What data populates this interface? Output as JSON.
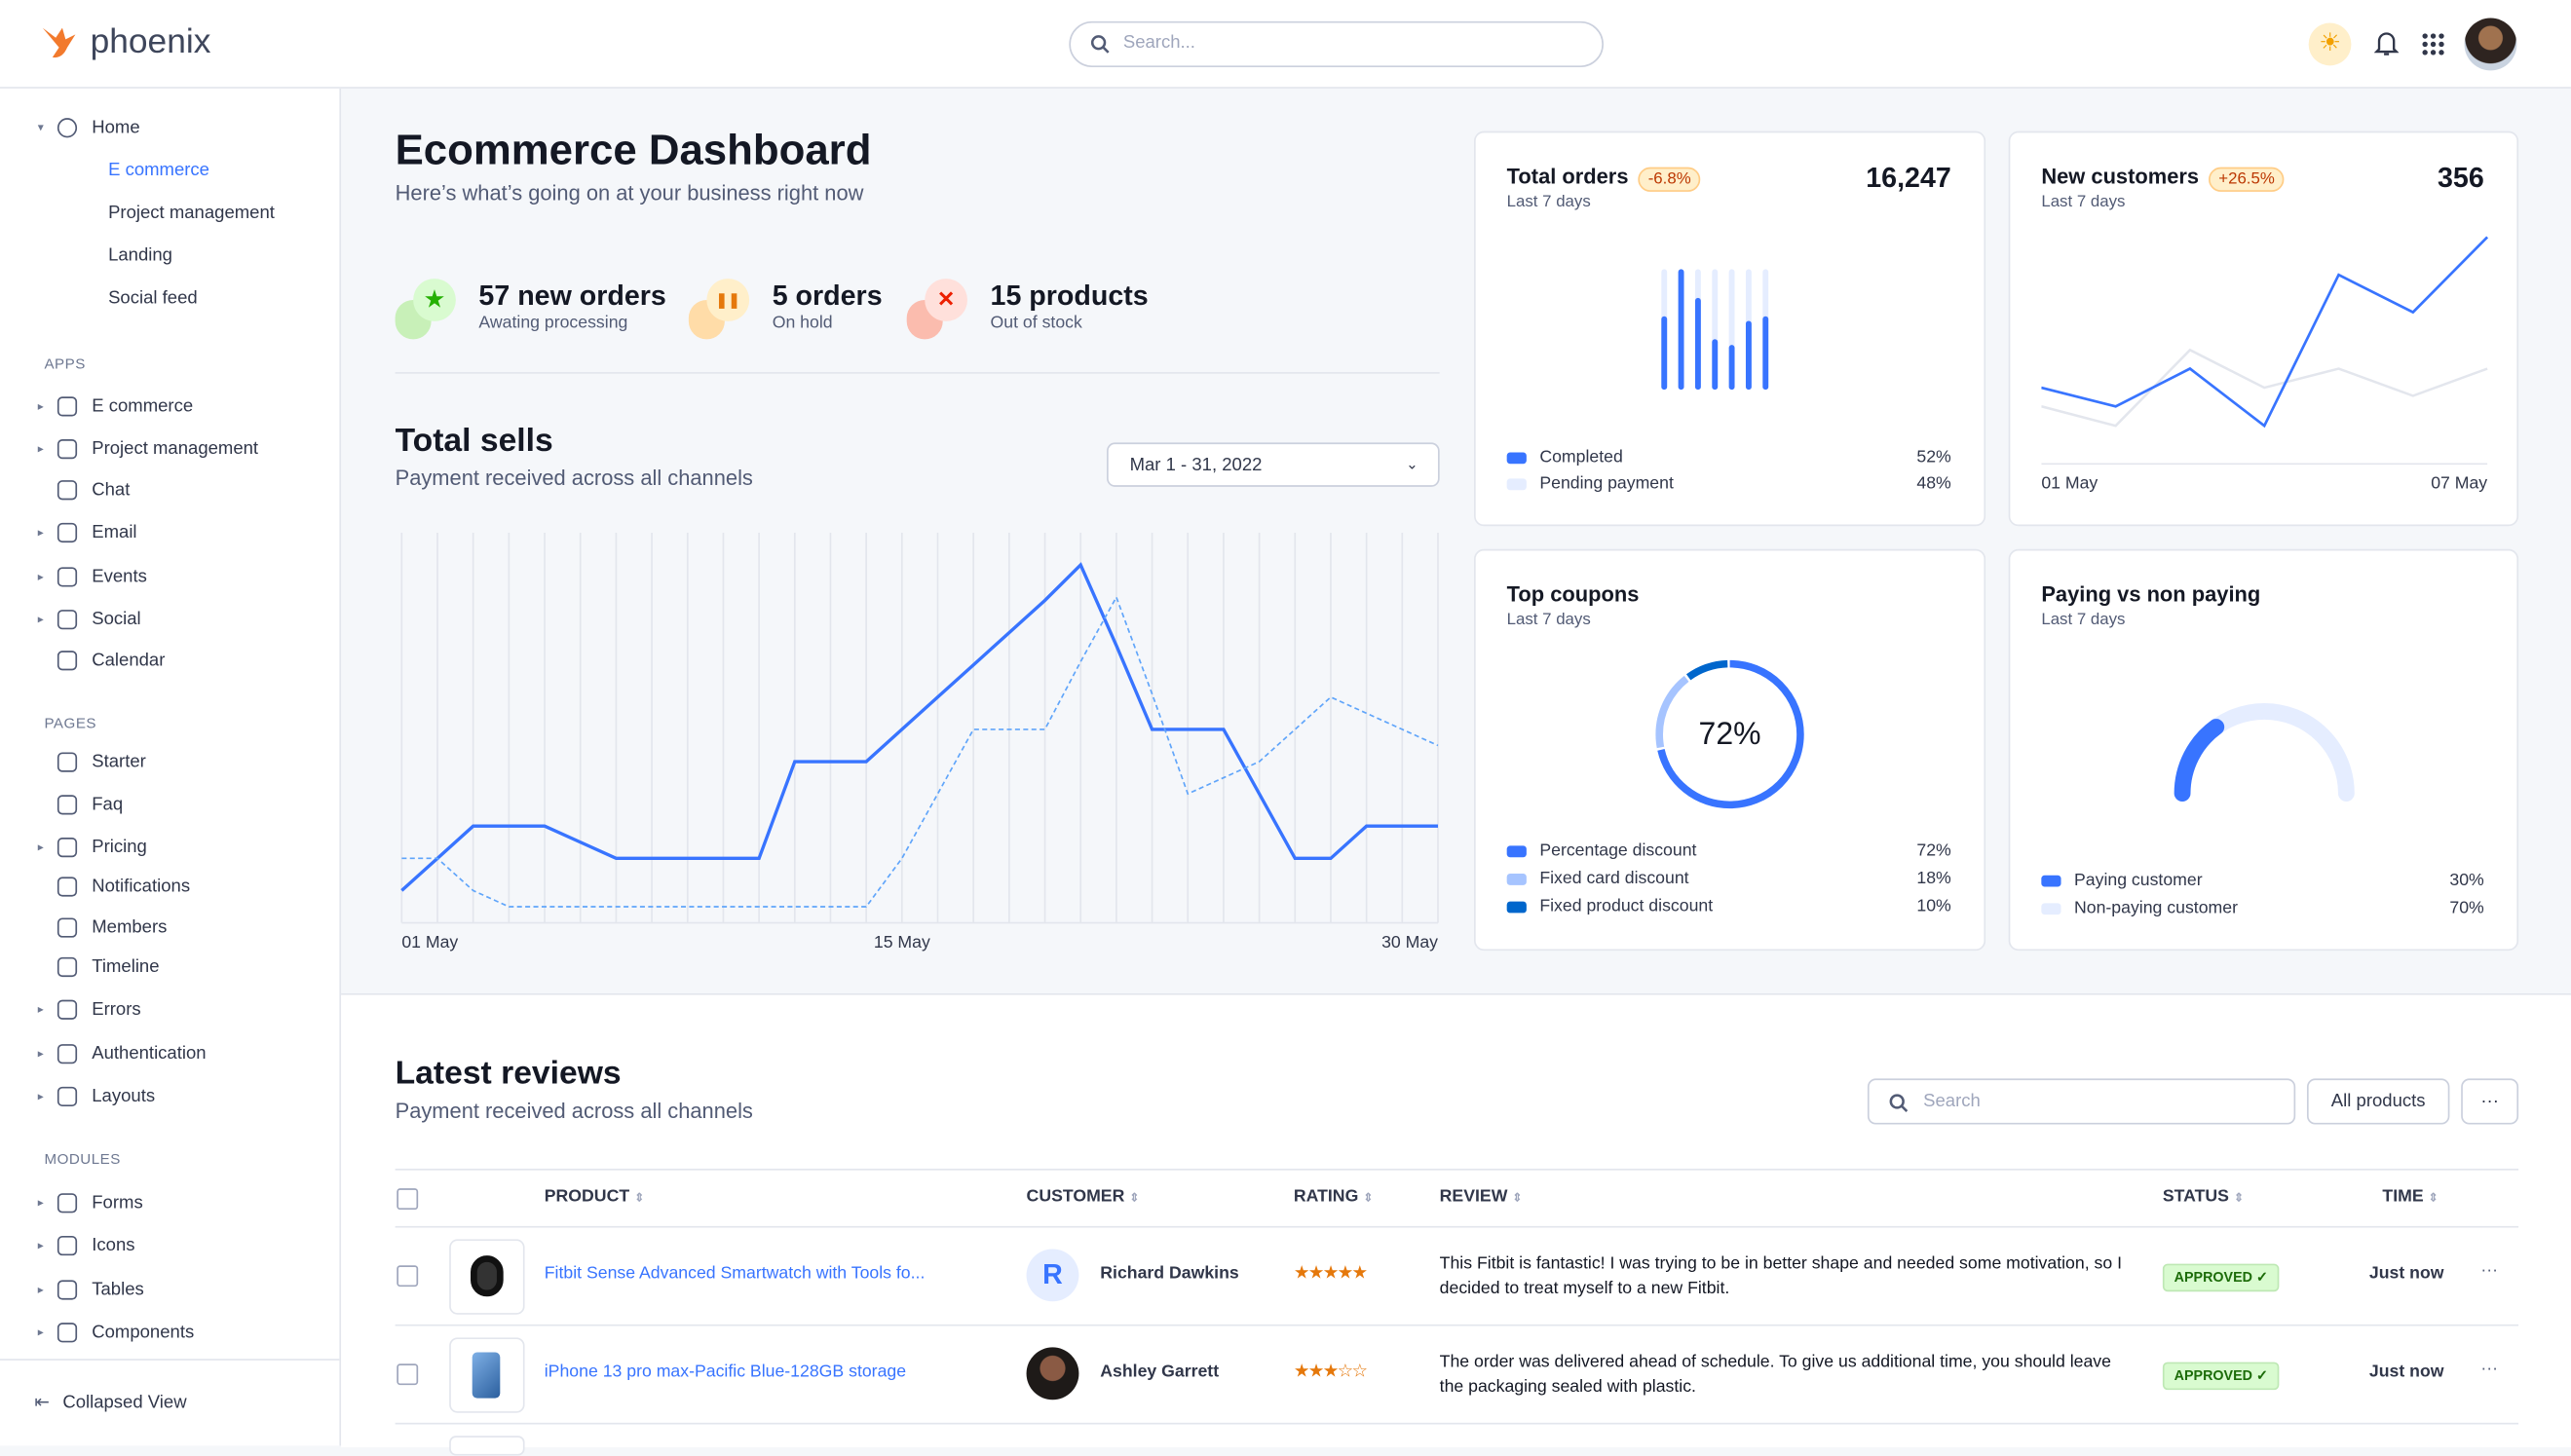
{
  "app": {
    "name": "phoenix",
    "search_placeholder": "Search..."
  },
  "sidebar": {
    "home": "Home",
    "home_items": [
      "E commerce",
      "Project management",
      "Landing",
      "Social feed"
    ],
    "apps_label": "APPS",
    "apps": [
      "E commerce",
      "Project management",
      "Chat",
      "Email",
      "Events",
      "Social",
      "Calendar"
    ],
    "pages_label": "PAGES",
    "pages": [
      "Starter",
      "Faq",
      "Pricing",
      "Notifications",
      "Members",
      "Timeline",
      "Errors",
      "Authentication",
      "Layouts"
    ],
    "modules_label": "MODULES",
    "modules": [
      "Forms",
      "Icons",
      "Tables",
      "Components"
    ],
    "collapse": "Collapsed View"
  },
  "main": {
    "title": "Ecommerce Dashboard",
    "subtitle": "Here’s what’s going on at your business right now",
    "stats": [
      {
        "value": "57 new orders",
        "label": "Awating processing",
        "icon": "star-icon",
        "color": "#25b003"
      },
      {
        "value": "5 orders",
        "label": "On hold",
        "icon": "pause-icon",
        "color": "#e5780b"
      },
      {
        "value": "15 products",
        "label": "Out of stock",
        "icon": "x-icon",
        "color": "#ec1f00"
      }
    ],
    "sells": {
      "title": "Total sells",
      "subtitle": "Payment received across all channels",
      "date": "Mar 1 - 31, 2022"
    }
  },
  "chart_data": [
    {
      "type": "line",
      "title": "Total sells",
      "x_ticks": [
        "01 May",
        "15 May",
        "30 May"
      ],
      "x": [
        1,
        2,
        3,
        4,
        5,
        6,
        7,
        8,
        9,
        10,
        11,
        12,
        13,
        14,
        15,
        16,
        17,
        18,
        19,
        20,
        21,
        22,
        23,
        24,
        25,
        26,
        27,
        28,
        29,
        30
      ],
      "series": [
        {
          "style": "solid",
          "color": "#3874ff",
          "values": [
            10,
            20,
            30,
            30,
            30,
            25,
            20,
            20,
            20,
            20,
            20,
            50,
            50,
            50,
            60,
            70,
            80,
            90,
            100,
            111,
            86,
            60,
            60,
            60,
            40,
            20,
            20,
            30,
            30,
            30
          ]
        },
        {
          "style": "dashed",
          "color": "#60a5fa",
          "values": [
            20,
            20,
            10,
            5,
            5,
            5,
            5,
            5,
            5,
            5,
            5,
            5,
            5,
            5,
            20,
            40,
            60,
            60,
            60,
            81,
            101,
            71,
            40,
            45,
            50,
            60,
            70,
            65,
            60,
            55
          ]
        }
      ],
      "ylim": [
        0,
        121
      ],
      "grid": "vertical"
    },
    {
      "type": "bar",
      "title": "Total orders",
      "subtitle": "Last 7 days",
      "total": "16,247",
      "change": "-6.8%",
      "completed_fraction": [
        0.59,
        1.0,
        0.75,
        0.39,
        0.34,
        0.55,
        0.59
      ],
      "legend": [
        {
          "name": "Completed",
          "value": "52%",
          "color": "#3874ff"
        },
        {
          "name": "Pending payment",
          "value": "48%",
          "color": "#e5edff"
        }
      ]
    },
    {
      "type": "line",
      "title": "New customers",
      "subtitle": "Last 7 days",
      "total": "356",
      "change": "+26.5%",
      "x_ticks": [
        "01 May",
        "07 May"
      ],
      "series": [
        {
          "color": "#3874ff",
          "values": [
            216,
            163,
            270,
            108,
            536,
            430,
            643
          ]
        },
        {
          "color": "#e3e6ed",
          "values": [
            163,
            108,
            323,
            216,
            270,
            193,
            270
          ]
        }
      ],
      "ylim": [
        0,
        660
      ]
    },
    {
      "type": "pie",
      "title": "Top coupons",
      "subtitle": "Last 7 days",
      "center_label": "72%",
      "slices": [
        {
          "name": "Percentage discount",
          "value": 72,
          "label": "72%",
          "color": "#3874ff"
        },
        {
          "name": "Fixed card discount",
          "value": 18,
          "label": "18%",
          "color": "#a6c4ff"
        },
        {
          "name": "Fixed product discount",
          "value": 10,
          "label": "10%",
          "color": "#0066cc"
        }
      ]
    },
    {
      "type": "pie",
      "title": "Paying vs non paying",
      "subtitle": "Last 7 days",
      "slices": [
        {
          "name": "Paying customer",
          "value": 30,
          "label": "30%",
          "color": "#3874ff"
        },
        {
          "name": "Non-paying customer",
          "value": 70,
          "label": "70%",
          "color": "#e5edff"
        }
      ]
    }
  ],
  "reviews": {
    "title": "Latest reviews",
    "subtitle": "Payment received across all channels",
    "search_placeholder": "Search",
    "filter": "All products",
    "more": "···",
    "columns": [
      "PRODUCT",
      "CUSTOMER",
      "RATING",
      "REVIEW",
      "STATUS",
      "TIME"
    ],
    "rows": [
      {
        "product": "Fitbit Sense Advanced Smartwatch with Tools fo...",
        "customer": "Richard Dawkins",
        "initial": "R",
        "rating": 5,
        "review": "This Fitbit is fantastic! I was trying to be in better shape and needed some motivation, so I decided to treat myself to a new Fitbit.",
        "status": "APPROVED ✓",
        "time": "Just now"
      },
      {
        "product": "iPhone 13 pro max-Pacific Blue-128GB storage",
        "customer": "Ashley Garrett",
        "rating": 3,
        "review": "The order was delivered ahead of schedule. To give us additional time, you should leave the packaging sealed with plastic.",
        "status": "APPROVED ✓",
        "time": "Just now"
      }
    ]
  }
}
